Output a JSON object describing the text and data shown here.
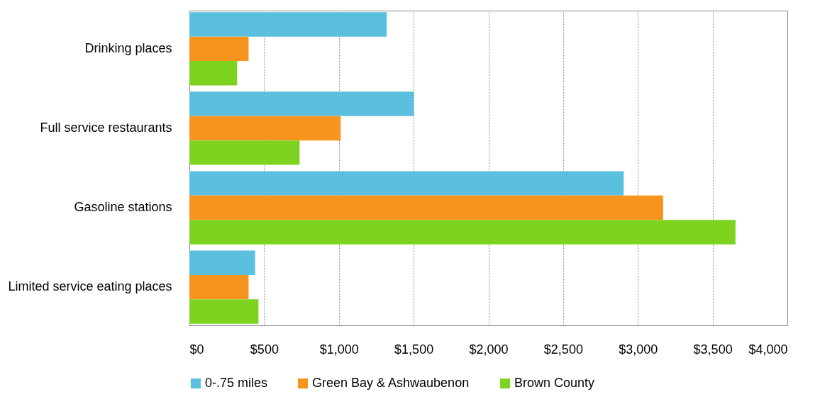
{
  "chart_data": {
    "type": "bar",
    "orientation": "horizontal",
    "categories": [
      "Drinking places",
      "Full service restaurants",
      "Gasoline stations",
      "Limited service eating places"
    ],
    "series": [
      {
        "name": "0-.75 miles",
        "color": "#5bc0de",
        "values": [
          1320,
          1500,
          2905,
          440
        ]
      },
      {
        "name": "Green Bay & Ashwaubenon",
        "color": "#f7941d",
        "values": [
          396,
          1012,
          3169,
          396
        ]
      },
      {
        "name": "Brown County",
        "color": "#7ed321",
        "values": [
          319,
          737,
          3653,
          462
        ]
      }
    ],
    "xlim": [
      0,
      4000
    ],
    "xticks": [
      {
        "value": 0,
        "label": "$0"
      },
      {
        "value": 500,
        "label": "$500"
      },
      {
        "value": 1000,
        "label": "$1,000"
      },
      {
        "value": 1500,
        "label": "$1,500"
      },
      {
        "value": 2000,
        "label": "$2,000"
      },
      {
        "value": 2500,
        "label": "$2,500"
      },
      {
        "value": 3000,
        "label": "$3,000"
      },
      {
        "value": 3500,
        "label": "$3,500"
      },
      {
        "value": 4000,
        "label": "$4,000"
      }
    ],
    "grid": "x",
    "legend": "bottom"
  }
}
